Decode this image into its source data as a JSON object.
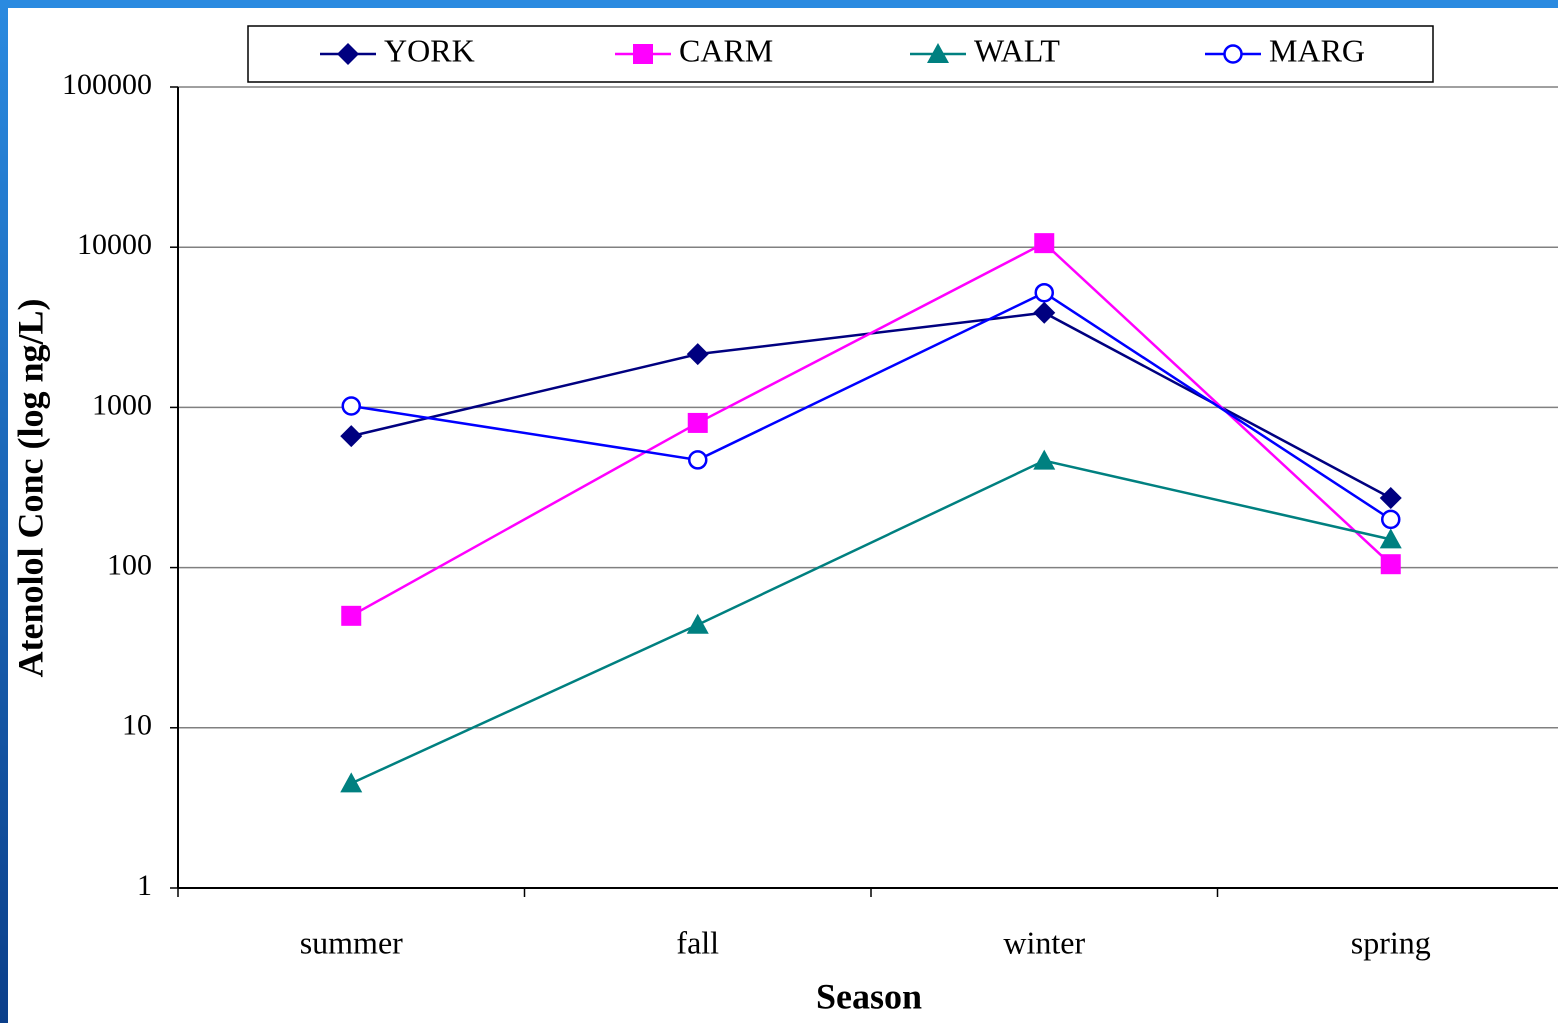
{
  "chart_data": {
    "type": "line",
    "y_label": "Atenolol Conc (log ng/L)",
    "x_label": "Season",
    "categories": [
      "summer",
      "fall",
      "winter",
      "spring"
    ],
    "log_scale": true,
    "grid": true,
    "legend": "top",
    "ylim": [
      1,
      100000
    ],
    "yticks": [
      1,
      10,
      100,
      1000,
      10000,
      100000
    ],
    "series": [
      {
        "name": "YORK",
        "color": "#000080",
        "marker": "diamond",
        "values": [
          662,
          2150,
          3900,
          272
        ]
      },
      {
        "name": "CARM",
        "color": "#ff00ff",
        "marker": "square",
        "values": [
          50,
          800,
          10600,
          105
        ]
      },
      {
        "name": "WALT",
        "color": "#008080",
        "marker": "triangle",
        "values": [
          4.5,
          44,
          465,
          150
        ]
      },
      {
        "name": "MARG",
        "color": "#0000ff",
        "marker": "open-circle",
        "values": [
          1020,
          470,
          5200,
          200
        ]
      }
    ]
  }
}
